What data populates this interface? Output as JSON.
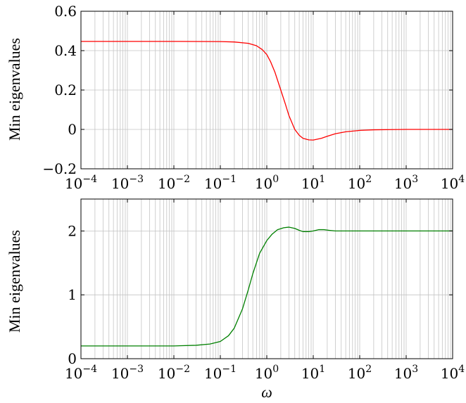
{
  "chart_data": [
    {
      "type": "line",
      "xscale": "log",
      "xlim": [
        0.0001,
        10000
      ],
      "ylim": [
        -0.2,
        0.6
      ],
      "xlabel": "",
      "ylabel": "Min eigenvalues",
      "yticks": [
        -0.2,
        0,
        0.2,
        0.4,
        0.6
      ],
      "ytick_labels": [
        "−0.2",
        "0",
        "0.2",
        "0.4",
        "0.6"
      ],
      "xticks": [
        0.0001,
        0.001,
        0.01,
        0.1,
        1,
        10,
        100,
        1000,
        10000
      ],
      "xtick_labels": [
        {
          "base": "10",
          "exp": "−4"
        },
        {
          "base": "10",
          "exp": "−3"
        },
        {
          "base": "10",
          "exp": "−2"
        },
        {
          "base": "10",
          "exp": "−1"
        },
        {
          "base": "10",
          "exp": "0"
        },
        {
          "base": "10",
          "exp": "1"
        },
        {
          "base": "10",
          "exp": "2"
        },
        {
          "base": "10",
          "exp": "3"
        },
        {
          "base": "10",
          "exp": "4"
        }
      ],
      "grid": true,
      "series": [
        {
          "color": "#ff0000",
          "x": [
            0.0001,
            0.01,
            0.1,
            0.2,
            0.4,
            0.6,
            0.8,
            1,
            1.2,
            1.5,
            2,
            2.5,
            3,
            4,
            5,
            6,
            8,
            10,
            15,
            20,
            30,
            50,
            100,
            200,
            500,
            1000,
            10000
          ],
          "y": [
            0.447,
            0.447,
            0.446,
            0.444,
            0.437,
            0.425,
            0.405,
            0.38,
            0.345,
            0.29,
            0.2,
            0.13,
            0.07,
            0.0,
            -0.03,
            -0.045,
            -0.053,
            -0.054,
            -0.045,
            -0.035,
            -0.022,
            -0.012,
            -0.005,
            -0.002,
            -0.001,
            0.0,
            0.0
          ]
        }
      ]
    },
    {
      "type": "line",
      "xscale": "log",
      "xlim": [
        0.0001,
        10000
      ],
      "ylim": [
        0,
        2.5
      ],
      "xlabel": "ω",
      "ylabel": "Min eigenvalues",
      "yticks": [
        0,
        1,
        2
      ],
      "ytick_labels": [
        "0",
        "1",
        "2"
      ],
      "xticks": [
        0.0001,
        0.001,
        0.01,
        0.1,
        1,
        10,
        100,
        1000,
        10000
      ],
      "xtick_labels": [
        {
          "base": "10",
          "exp": "−4"
        },
        {
          "base": "10",
          "exp": "−3"
        },
        {
          "base": "10",
          "exp": "−2"
        },
        {
          "base": "10",
          "exp": "−1"
        },
        {
          "base": "10",
          "exp": "0"
        },
        {
          "base": "10",
          "exp": "1"
        },
        {
          "base": "10",
          "exp": "2"
        },
        {
          "base": "10",
          "exp": "3"
        },
        {
          "base": "10",
          "exp": "4"
        }
      ],
      "grid": true,
      "series": [
        {
          "color": "#008000",
          "x": [
            0.0001,
            0.001,
            0.01,
            0.03,
            0.06,
            0.1,
            0.15,
            0.2,
            0.3,
            0.4,
            0.5,
            0.7,
            1,
            1.3,
            1.7,
            2.3,
            3,
            4,
            5,
            6,
            8,
            10,
            13,
            17,
            22,
            30,
            50,
            100,
            1000,
            10000
          ],
          "y": [
            0.2,
            0.2,
            0.2,
            0.21,
            0.23,
            0.27,
            0.36,
            0.48,
            0.78,
            1.08,
            1.33,
            1.65,
            1.85,
            1.95,
            2.02,
            2.05,
            2.06,
            2.04,
            2.01,
            1.99,
            1.99,
            2.0,
            2.02,
            2.02,
            2.01,
            2.0,
            2.0,
            2.0,
            2.0,
            2.0
          ]
        }
      ]
    }
  ]
}
